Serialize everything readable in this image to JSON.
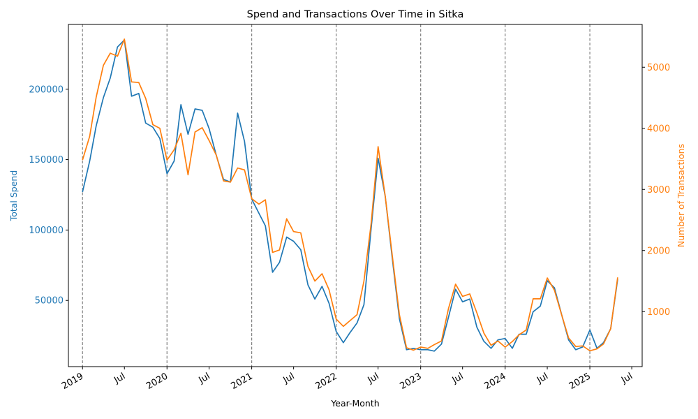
{
  "chart_data": {
    "type": "line",
    "title": "Spend and Transactions Over Time in Sitka",
    "xlabel": "Year-Month",
    "ylabel_left": "Total Spend",
    "ylabel_right": "Number of Transactions",
    "x_range": [
      "2018-11-01",
      "2025-08-15"
    ],
    "y_left_range": [
      3000,
      246000
    ],
    "y_right_range": [
      100,
      5700
    ],
    "x_ticks": [
      {
        "date": "2019-01-01",
        "label": "2019"
      },
      {
        "date": "2019-07-01",
        "label": "Jul"
      },
      {
        "date": "2020-01-01",
        "label": "2020"
      },
      {
        "date": "2020-07-01",
        "label": "Jul"
      },
      {
        "date": "2021-01-01",
        "label": "2021"
      },
      {
        "date": "2021-07-01",
        "label": "Jul"
      },
      {
        "date": "2022-01-01",
        "label": "2022"
      },
      {
        "date": "2022-07-01",
        "label": "Jul"
      },
      {
        "date": "2023-01-01",
        "label": "2023"
      },
      {
        "date": "2023-07-01",
        "label": "Jul"
      },
      {
        "date": "2024-01-01",
        "label": "2024"
      },
      {
        "date": "2024-07-01",
        "label": "Jul"
      },
      {
        "date": "2025-01-01",
        "label": "2025"
      },
      {
        "date": "2025-07-01",
        "label": "Jul"
      }
    ],
    "y_left_ticks": [
      50000,
      100000,
      150000,
      200000
    ],
    "y_right_ticks": [
      1000,
      2000,
      3000,
      4000,
      5000
    ],
    "year_marker_dates": [
      "2019-01-01",
      "2020-01-01",
      "2021-01-01",
      "2022-01-01",
      "2023-01-01",
      "2024-01-01",
      "2025-01-01"
    ],
    "x": [
      "2019-01",
      "2019-02",
      "2019-03",
      "2019-04",
      "2019-05",
      "2019-06",
      "2019-07",
      "2019-08",
      "2019-09",
      "2019-10",
      "2019-11",
      "2019-12",
      "2020-01",
      "2020-02",
      "2020-03",
      "2020-04",
      "2020-05",
      "2020-06",
      "2020-07",
      "2020-08",
      "2020-09",
      "2020-10",
      "2020-11",
      "2020-12",
      "2021-01",
      "2021-02",
      "2021-03",
      "2021-04",
      "2021-05",
      "2021-06",
      "2021-07",
      "2021-08",
      "2021-09",
      "2021-10",
      "2021-11",
      "2021-12",
      "2022-01",
      "2022-02",
      "2022-03",
      "2022-04",
      "2022-05",
      "2022-06",
      "2022-07",
      "2022-08",
      "2022-09",
      "2022-10",
      "2022-11",
      "2022-12",
      "2023-01",
      "2023-02",
      "2023-03",
      "2023-04",
      "2023-05",
      "2023-06",
      "2023-07",
      "2023-08",
      "2023-09",
      "2023-10",
      "2023-11",
      "2023-12",
      "2024-01",
      "2024-02",
      "2024-03",
      "2024-04",
      "2024-05",
      "2024-06",
      "2024-07",
      "2024-08",
      "2024-09",
      "2024-10",
      "2024-11",
      "2024-12",
      "2025-01",
      "2025-02",
      "2025-03",
      "2025-04",
      "2025-05"
    ],
    "series": [
      {
        "name": "Total Spend",
        "axis": "left",
        "color": "#1f77b4",
        "values": [
          127000,
          149000,
          174000,
          194000,
          208000,
          230000,
          235000,
          195000,
          197000,
          176000,
          173000,
          165000,
          140000,
          149000,
          189000,
          168000,
          186000,
          185000,
          172000,
          153000,
          136000,
          134000,
          183000,
          163000,
          122000,
          112000,
          103000,
          70000,
          77000,
          95000,
          92000,
          86000,
          61000,
          51000,
          60000,
          48000,
          28000,
          20000,
          27000,
          34000,
          47000,
          101000,
          151000,
          124000,
          79000,
          37000,
          15000,
          16000,
          15000,
          15000,
          14000,
          19000,
          38000,
          58000,
          49000,
          51000,
          31000,
          21000,
          16000,
          22000,
          23000,
          16000,
          26000,
          26000,
          42000,
          46000,
          64000,
          59000,
          40000,
          22000,
          15000,
          17000,
          29000,
          16000,
          20000,
          30000,
          65000
        ]
      },
      {
        "name": "Number of Transactions",
        "axis": "right",
        "color": "#ff7f0e",
        "values": [
          3480,
          3870,
          4510,
          5030,
          5230,
          5180,
          5460,
          4760,
          4750,
          4490,
          4060,
          4000,
          3480,
          3650,
          3920,
          3240,
          3940,
          4010,
          3800,
          3560,
          3140,
          3120,
          3350,
          3320,
          2850,
          2760,
          2830,
          1970,
          2010,
          2520,
          2310,
          2290,
          1740,
          1500,
          1620,
          1360,
          880,
          760,
          850,
          950,
          1500,
          2440,
          3700,
          2890,
          1900,
          950,
          410,
          370,
          420,
          400,
          460,
          520,
          1050,
          1450,
          1250,
          1290,
          980,
          650,
          450,
          520,
          420,
          510,
          620,
          700,
          1210,
          1210,
          1550,
          1350,
          950,
          570,
          430,
          440,
          360,
          390,
          470,
          720,
          1560
        ]
      }
    ]
  }
}
